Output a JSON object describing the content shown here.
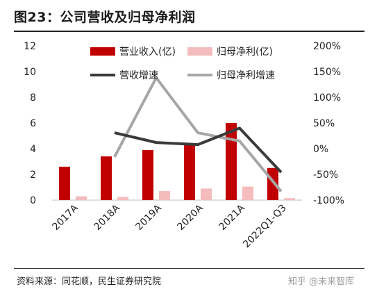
{
  "title": "图23：公司营收及归母净利润",
  "source": "资料来源：同花顺，民生证券研究院",
  "watermark": "知乎 @未来智库",
  "colors": {
    "revenue": "#c00000",
    "net_profit": "#f4bcbc",
    "revenue_growth": "#3a3a3a",
    "net_profit_growth": "#a6a6a6"
  },
  "chart_data": {
    "type": "bar",
    "categories": [
      "2017A",
      "2018A",
      "2019A",
      "2020A",
      "2021A",
      "2022Q1-Q3"
    ],
    "y_left": {
      "ylim": [
        0,
        12
      ],
      "ticks": [
        "0",
        "2",
        "4",
        "6",
        "8",
        "10",
        "12"
      ]
    },
    "y_right": {
      "ylim": [
        -100,
        200
      ],
      "unit": "%",
      "ticks": [
        "-100%",
        "-50%",
        "0%",
        "50%",
        "100%",
        "150%",
        "200%"
      ]
    },
    "series": [
      {
        "name": "营业收入(亿)",
        "type": "bar",
        "axis": "left",
        "values": [
          2.6,
          3.4,
          3.9,
          4.3,
          6.0,
          2.5
        ]
      },
      {
        "name": "归母净利(亿)",
        "type": "bar",
        "axis": "left",
        "values": [
          0.3,
          0.25,
          0.7,
          0.9,
          1.05,
          0.15
        ]
      },
      {
        "name": "营收增速",
        "type": "line",
        "axis": "right",
        "values": [
          null,
          31,
          12,
          8,
          40,
          -46
        ]
      },
      {
        "name": "归母净利增速",
        "type": "line",
        "axis": "right",
        "values": [
          null,
          -16,
          138,
          31,
          15,
          -83
        ]
      }
    ],
    "legend_position": "top",
    "grid": false
  }
}
